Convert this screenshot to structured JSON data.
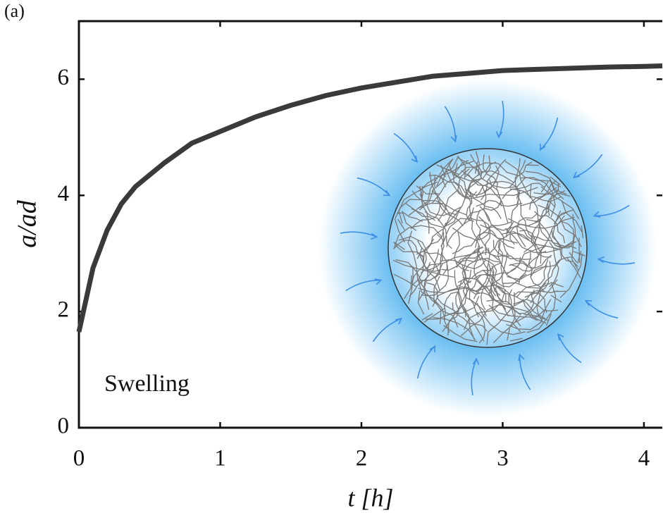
{
  "chart_data": {
    "type": "line",
    "panel_label": "(a)",
    "annotation": "Swelling",
    "x_label": "t [h]",
    "y_label": "a/ad",
    "x": [
      0,
      0.05,
      0.1,
      0.2,
      0.3,
      0.4,
      0.5,
      0.6,
      0.8,
      1.0,
      1.25,
      1.5,
      1.75,
      2.0,
      2.25,
      2.5,
      2.75,
      3.0,
      3.25,
      3.5,
      3.75,
      4.0,
      4.13
    ],
    "series": [
      {
        "color": "#3a3a3a",
        "values": [
          1.65,
          2.2,
          2.75,
          3.4,
          3.85,
          4.15,
          4.35,
          4.55,
          4.9,
          5.1,
          5.35,
          5.55,
          5.72,
          5.85,
          5.95,
          6.05,
          6.1,
          6.15,
          6.17,
          6.19,
          6.21,
          6.22,
          6.23
        ]
      }
    ],
    "xlim": [
      0,
      4.13
    ],
    "ylim": [
      0,
      7
    ],
    "xticks": [
      0,
      1,
      2,
      3,
      4
    ],
    "yticks": [
      0,
      2,
      4,
      6
    ]
  }
}
